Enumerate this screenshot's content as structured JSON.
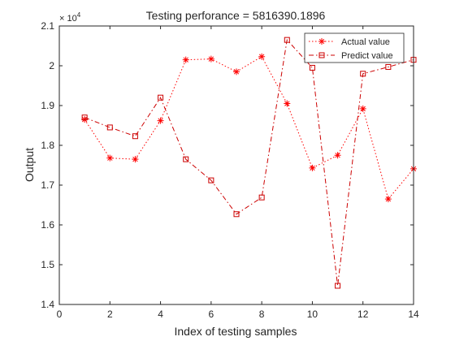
{
  "chart_data": {
    "type": "line",
    "title": "Testing perforance = 5816390.1896",
    "xlabel": "Index of testing samples",
    "ylabel": "Output",
    "y_exponent_label": "× 10",
    "y_exponent_power": "4",
    "xlim": [
      0,
      14
    ],
    "ylim": [
      14000,
      21000
    ],
    "x_ticks": [
      0,
      2,
      4,
      6,
      8,
      10,
      12,
      14
    ],
    "y_ticks": [
      14000,
      15000,
      16000,
      17000,
      18000,
      19000,
      20000,
      21000
    ],
    "x_tick_labels": [
      "0",
      "2",
      "4",
      "6",
      "8",
      "10",
      "12",
      "14"
    ],
    "y_tick_labels": [
      "1.4",
      "1.5",
      "1.6",
      "1.7",
      "1.8",
      "1.9",
      "2",
      "2.1"
    ],
    "grid": false,
    "legend_position": "top-right",
    "x": [
      1,
      2,
      3,
      4,
      5,
      6,
      7,
      8,
      9,
      10,
      11,
      12,
      13,
      14
    ],
    "series": [
      {
        "name": "Actual value",
        "marker": "asterisk",
        "line_style": "dotted",
        "color": "#ff0000",
        "values": [
          18650,
          17680,
          17650,
          18620,
          20150,
          20170,
          19850,
          20230,
          19050,
          17430,
          17750,
          18920,
          16650,
          17410
        ]
      },
      {
        "name": "Predict value",
        "marker": "square",
        "line_style": "dashdot",
        "color": "#cc0000",
        "values": [
          18700,
          18450,
          18230,
          19200,
          17650,
          17120,
          16270,
          16690,
          20650,
          19950,
          14470,
          19800,
          19970,
          20150
        ]
      }
    ]
  }
}
